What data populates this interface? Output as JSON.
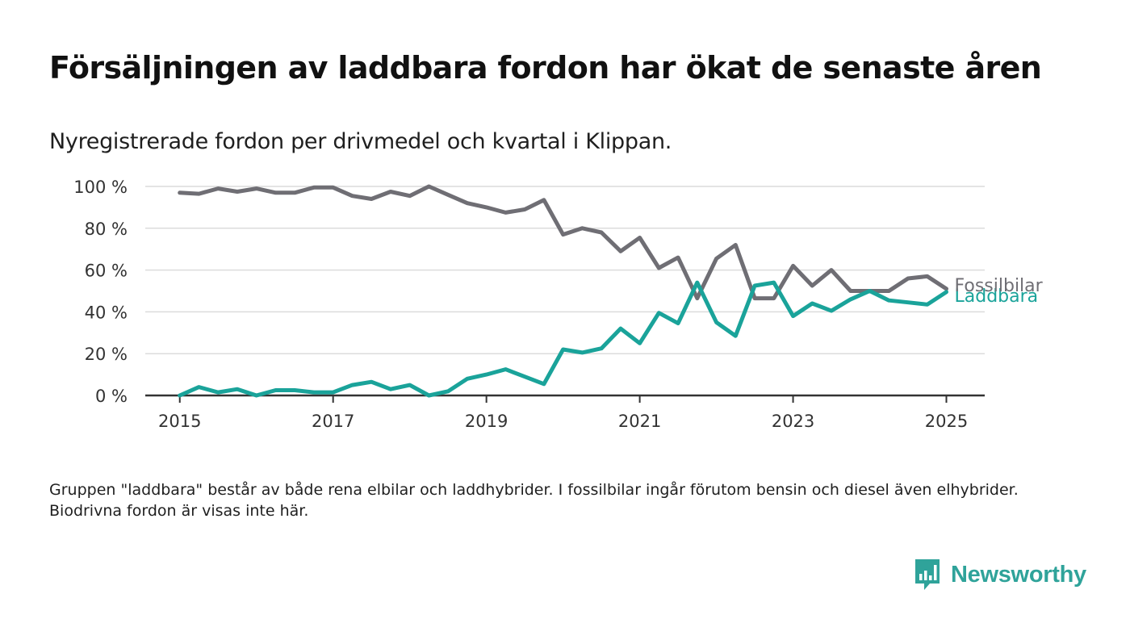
{
  "header": {
    "title": "Försäljningen av laddbara fordon har ökat de senaste åren",
    "subtitle": "Nyregistrerade fordon per drivmedel och kvartal i Klippan."
  },
  "footnote": "Gruppen \"laddbara\" består av både rena elbilar och laddhybrider. I fossilbilar ingår förutom bensin och diesel även elhybrider. Biodrivna fordon är visas inte här.",
  "brand": {
    "name": "Newsworthy",
    "icon": "newsworthy-logo-icon"
  },
  "colors": {
    "fossil": "#6f6e74",
    "laddbara": "#1aa39a",
    "grid": "#dcdcdc",
    "axis": "#333333"
  },
  "chart_data": {
    "type": "line",
    "x": [
      2015.0,
      2015.25,
      2015.5,
      2015.75,
      2016.0,
      2016.25,
      2016.5,
      2016.75,
      2017.0,
      2017.25,
      2017.5,
      2017.75,
      2018.0,
      2018.25,
      2018.5,
      2018.75,
      2019.0,
      2019.25,
      2019.5,
      2019.75,
      2020.0,
      2020.25,
      2020.5,
      2020.75,
      2021.0,
      2021.25,
      2021.5,
      2021.75,
      2022.0,
      2022.25,
      2022.5,
      2022.75,
      2023.0,
      2023.25,
      2023.5,
      2023.75,
      2024.0,
      2024.25,
      2024.5,
      2024.75,
      2025.0
    ],
    "series": [
      {
        "name": "Fossilbilar",
        "values": [
          97,
          96.5,
          99,
          97.5,
          99,
          97,
          97,
          99.5,
          99.5,
          95.5,
          94,
          97.5,
          95.5,
          100,
          96,
          92,
          90,
          87.5,
          89,
          93.5,
          77,
          80,
          78,
          69,
          75.5,
          61,
          66,
          46.5,
          65.5,
          72,
          46.5,
          46.5,
          62,
          52.5,
          60,
          50,
          50,
          50,
          56,
          57,
          51
        ]
      },
      {
        "name": "Laddbara",
        "values": [
          0,
          4,
          1.5,
          3,
          0,
          2.5,
          2.5,
          1.5,
          1.5,
          5,
          6.5,
          3,
          5,
          0,
          2,
          8,
          10,
          12.5,
          9,
          5.5,
          22,
          20.5,
          22.5,
          32,
          25,
          39.5,
          34.5,
          54,
          35,
          28.5,
          52.5,
          54,
          38,
          44,
          40.5,
          46,
          50,
          45.5,
          44.5,
          43.5,
          49.5
        ]
      }
    ],
    "y_ticks": [
      "0 %",
      "20 %",
      "40 %",
      "60 %",
      "80 %",
      "100 %"
    ],
    "x_ticks": [
      "2015",
      "2017",
      "2019",
      "2021",
      "2023",
      "2025"
    ],
    "ylim": [
      0,
      100
    ],
    "xlim": [
      2014.55,
      2025.5
    ],
    "grid": "horizontal",
    "legend": "line-end labels",
    "xlabel": "",
    "ylabel": ""
  }
}
